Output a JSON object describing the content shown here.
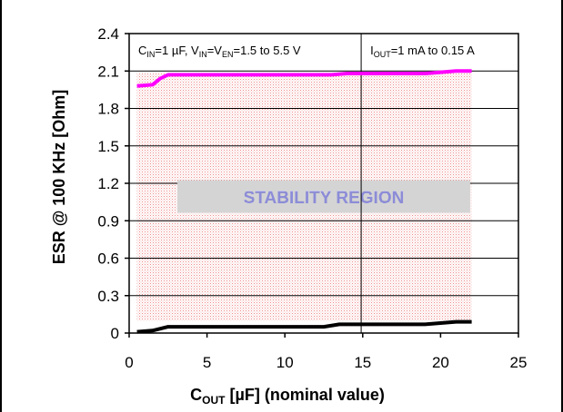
{
  "chart_data": {
    "type": "line",
    "xlabel": {
      "main": "C",
      "sub": "OUT",
      "rest": " [µF] (nominal value)"
    },
    "ylabel": "ESR @ 100 KHz [Ohm]",
    "xlim": [
      0,
      25
    ],
    "ylim": [
      0,
      2.4
    ],
    "x_ticks": [
      "0",
      "5",
      "10",
      "15",
      "20",
      "25"
    ],
    "y_ticks": [
      "0",
      "0.3",
      "0.6",
      "0.9",
      "1.2",
      "1.5",
      "1.8",
      "2.1",
      "2.4"
    ],
    "grid": "horizontal lines at y ticks",
    "conditions": [
      {
        "parts": [
          {
            "t": "C"
          },
          {
            "t": "IN",
            "sub": true
          },
          {
            "t": "=1 µF, V"
          },
          {
            "t": "IN",
            "sub": true
          },
          {
            "t": "=V"
          },
          {
            "t": "EN",
            "sub": true
          },
          {
            "t": "=1.5 to 5.5 V"
          }
        ]
      },
      {
        "parts": [
          {
            "t": "I"
          },
          {
            "t": "OUT",
            "sub": true
          },
          {
            "t": "=1 mA to 0.15 A"
          }
        ]
      }
    ],
    "region": {
      "label": "STABILITY REGION",
      "x_range": [
        0.5,
        22
      ],
      "y_range": [
        0.1,
        2.08
      ],
      "color": "#f4b0b0"
    },
    "series": [
      {
        "role": "upper_limit",
        "color": "#ff00ff",
        "x": [
          0.5,
          1.5,
          2,
          2.5,
          5,
          10,
          13,
          14,
          15,
          19,
          20,
          21,
          22
        ],
        "y": [
          1.98,
          1.99,
          2.04,
          2.07,
          2.07,
          2.07,
          2.07,
          2.08,
          2.08,
          2.08,
          2.09,
          2.1,
          2.1
        ]
      },
      {
        "role": "lower_limit",
        "color": "#000000",
        "x": [
          0.5,
          1.5,
          2.5,
          5,
          10,
          12.5,
          13.5,
          15,
          19,
          20,
          21,
          22
        ],
        "y": [
          0.01,
          0.02,
          0.05,
          0.05,
          0.05,
          0.05,
          0.07,
          0.07,
          0.07,
          0.08,
          0.09,
          0.09
        ]
      }
    ]
  }
}
